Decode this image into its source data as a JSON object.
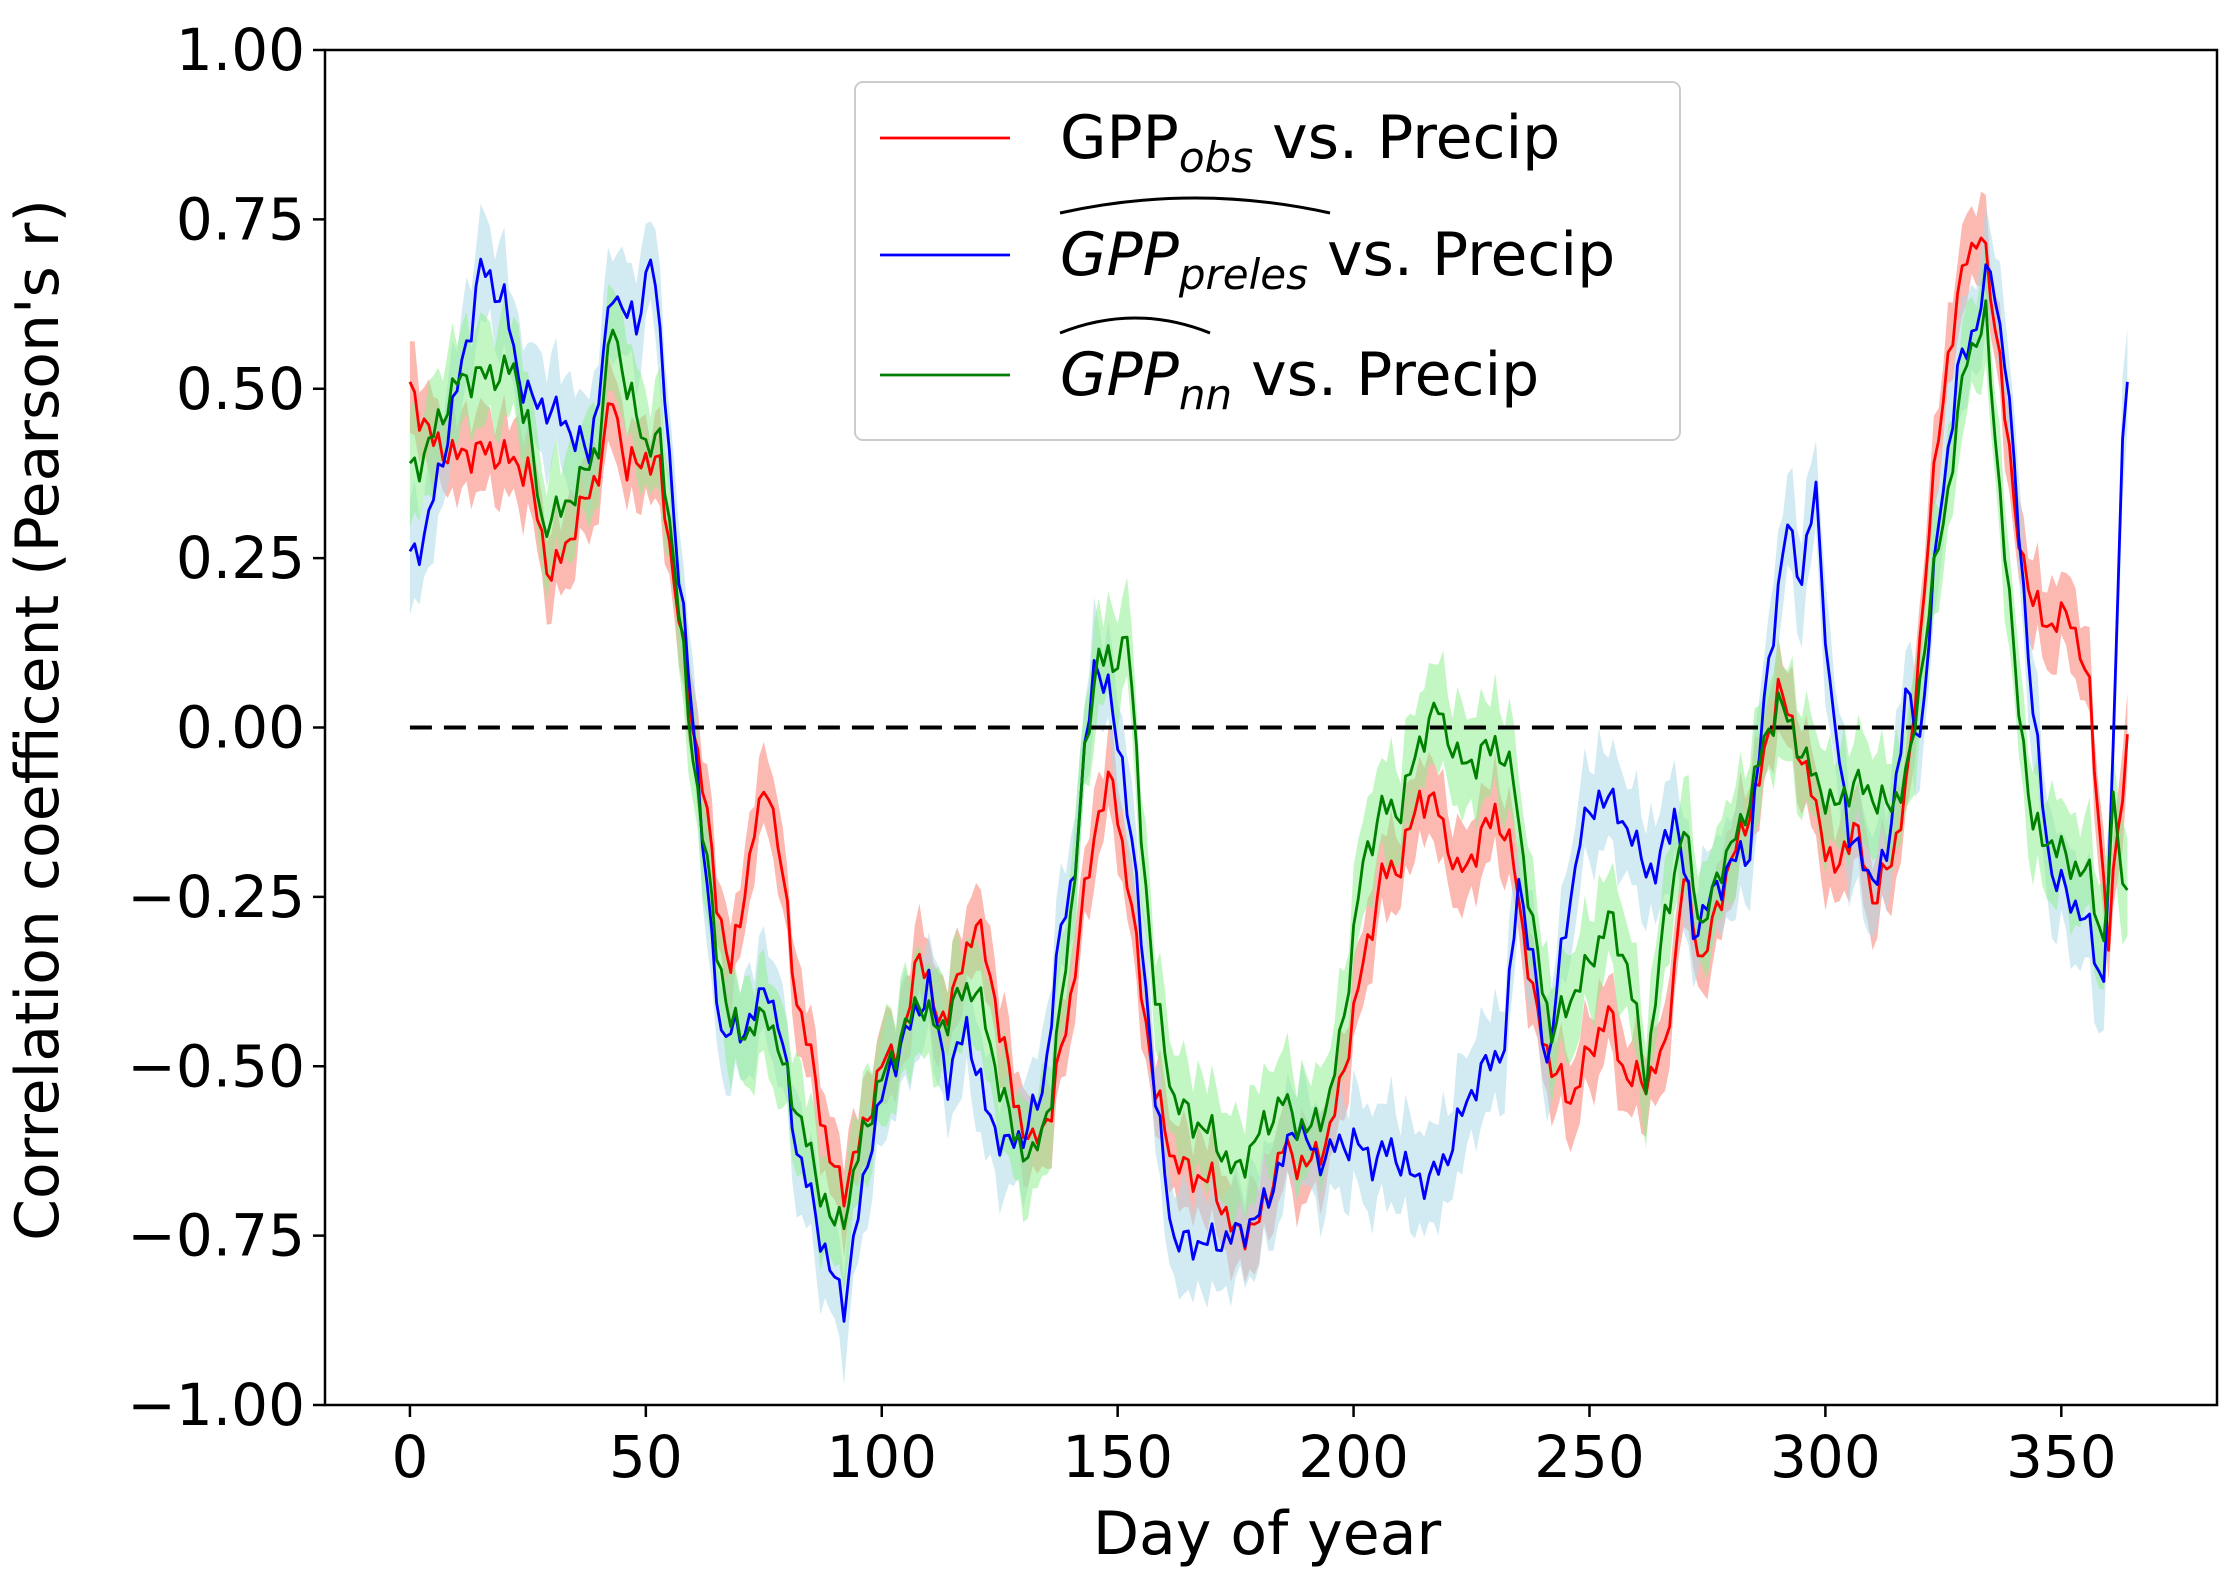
{
  "chart_data": {
    "type": "line",
    "xlabel": "Day of year",
    "ylabel": "Correlation coefficent (Pearson's r)",
    "xlim": [
      -18,
      383
    ],
    "ylim": [
      -1.0,
      1.0
    ],
    "xticks": [
      0,
      50,
      100,
      150,
      200,
      250,
      300,
      350
    ],
    "xtick_labels": [
      "0",
      "50",
      "100",
      "150",
      "200",
      "250",
      "300",
      "350"
    ],
    "yticks": [
      -1.0,
      -0.75,
      -0.5,
      -0.25,
      0.0,
      0.25,
      0.5,
      0.75,
      1.0
    ],
    "ytick_labels": [
      "−1.00",
      "−0.75",
      "−0.50",
      "−0.25",
      "0.00",
      "0.25",
      "0.50",
      "0.75",
      "1.00"
    ],
    "grid": false,
    "legend_position": "upper-center",
    "reference_line": {
      "y": 0.0,
      "x_start": 0,
      "x_end": 364,
      "style": "dashed",
      "color": "#000000"
    },
    "series": [
      {
        "key": "obs",
        "legend": {
          "base": "GPP",
          "sub": "obs",
          "suffix": " vs. Precip",
          "hat": false
        },
        "color": "#ff0000",
        "band_color": "#fa8072",
        "band_halfwidth": 0.06,
        "points": [
          [
            0,
            0.5
          ],
          [
            5,
            0.42
          ],
          [
            10,
            0.4
          ],
          [
            15,
            0.41
          ],
          [
            20,
            0.4
          ],
          [
            25,
            0.38
          ],
          [
            28,
            0.28
          ],
          [
            30,
            0.22
          ],
          [
            35,
            0.3
          ],
          [
            40,
            0.38
          ],
          [
            43,
            0.49
          ],
          [
            46,
            0.38
          ],
          [
            50,
            0.4
          ],
          [
            53,
            0.38
          ],
          [
            56,
            0.22
          ],
          [
            59,
            0.05
          ],
          [
            62,
            -0.08
          ],
          [
            65,
            -0.25
          ],
          [
            68,
            -0.36
          ],
          [
            70,
            -0.28
          ],
          [
            73,
            -0.15
          ],
          [
            76,
            -0.08
          ],
          [
            79,
            -0.22
          ],
          [
            82,
            -0.4
          ],
          [
            86,
            -0.52
          ],
          [
            89,
            -0.64
          ],
          [
            92,
            -0.68
          ],
          [
            95,
            -0.62
          ],
          [
            100,
            -0.5
          ],
          [
            105,
            -0.45
          ],
          [
            108,
            -0.32
          ],
          [
            112,
            -0.44
          ],
          [
            116,
            -0.38
          ],
          [
            120,
            -0.28
          ],
          [
            124,
            -0.4
          ],
          [
            128,
            -0.55
          ],
          [
            132,
            -0.62
          ],
          [
            136,
            -0.56
          ],
          [
            140,
            -0.4
          ],
          [
            143,
            -0.25
          ],
          [
            146,
            -0.12
          ],
          [
            149,
            -0.08
          ],
          [
            152,
            -0.22
          ],
          [
            155,
            -0.38
          ],
          [
            158,
            -0.54
          ],
          [
            162,
            -0.64
          ],
          [
            166,
            -0.66
          ],
          [
            170,
            -0.67
          ],
          [
            175,
            -0.75
          ],
          [
            180,
            -0.73
          ],
          [
            185,
            -0.62
          ],
          [
            190,
            -0.65
          ],
          [
            195,
            -0.6
          ],
          [
            198,
            -0.5
          ],
          [
            202,
            -0.35
          ],
          [
            206,
            -0.22
          ],
          [
            210,
            -0.2
          ],
          [
            214,
            -0.1
          ],
          [
            218,
            -0.12
          ],
          [
            222,
            -0.22
          ],
          [
            226,
            -0.18
          ],
          [
            230,
            -0.12
          ],
          [
            234,
            -0.2
          ],
          [
            238,
            -0.4
          ],
          [
            242,
            -0.5
          ],
          [
            246,
            -0.55
          ],
          [
            250,
            -0.48
          ],
          [
            254,
            -0.42
          ],
          [
            258,
            -0.52
          ],
          [
            262,
            -0.52
          ],
          [
            266,
            -0.48
          ],
          [
            270,
            -0.22
          ],
          [
            274,
            -0.35
          ],
          [
            278,
            -0.24
          ],
          [
            282,
            -0.16
          ],
          [
            286,
            -0.08
          ],
          [
            290,
            0.06
          ],
          [
            294,
            -0.02
          ],
          [
            298,
            -0.12
          ],
          [
            302,
            -0.22
          ],
          [
            306,
            -0.14
          ],
          [
            310,
            -0.25
          ],
          [
            314,
            -0.2
          ],
          [
            318,
            -0.05
          ],
          [
            322,
            0.3
          ],
          [
            326,
            0.55
          ],
          [
            330,
            0.7
          ],
          [
            333,
            0.73
          ],
          [
            337,
            0.55
          ],
          [
            340,
            0.32
          ],
          [
            344,
            0.18
          ],
          [
            348,
            0.15
          ],
          [
            352,
            0.17
          ],
          [
            356,
            0.05
          ],
          [
            360,
            -0.32
          ],
          [
            362,
            -0.15
          ],
          [
            364,
            -0.02
          ]
        ]
      },
      {
        "key": "preles",
        "legend": {
          "base": "GPP",
          "sub": "preles",
          "suffix": " vs. Precip",
          "hat": true
        },
        "color": "#0000ff",
        "band_color": "#add8e6",
        "band_halfwidth": 0.075,
        "points": [
          [
            0,
            0.25
          ],
          [
            3,
            0.28
          ],
          [
            6,
            0.37
          ],
          [
            10,
            0.5
          ],
          [
            13,
            0.6
          ],
          [
            15,
            0.68
          ],
          [
            18,
            0.65
          ],
          [
            20,
            0.63
          ],
          [
            23,
            0.52
          ],
          [
            26,
            0.48
          ],
          [
            30,
            0.47
          ],
          [
            34,
            0.44
          ],
          [
            38,
            0.4
          ],
          [
            41,
            0.55
          ],
          [
            43,
            0.64
          ],
          [
            46,
            0.62
          ],
          [
            48,
            0.58
          ],
          [
            51,
            0.71
          ],
          [
            54,
            0.5
          ],
          [
            57,
            0.22
          ],
          [
            60,
            0.02
          ],
          [
            63,
            -0.25
          ],
          [
            66,
            -0.45
          ],
          [
            70,
            -0.45
          ],
          [
            73,
            -0.42
          ],
          [
            76,
            -0.38
          ],
          [
            79,
            -0.47
          ],
          [
            82,
            -0.62
          ],
          [
            86,
            -0.72
          ],
          [
            89,
            -0.8
          ],
          [
            92,
            -0.85
          ],
          [
            95,
            -0.72
          ],
          [
            98,
            -0.6
          ],
          [
            102,
            -0.5
          ],
          [
            106,
            -0.44
          ],
          [
            110,
            -0.38
          ],
          [
            114,
            -0.52
          ],
          [
            118,
            -0.44
          ],
          [
            122,
            -0.56
          ],
          [
            126,
            -0.62
          ],
          [
            130,
            -0.6
          ],
          [
            134,
            -0.54
          ],
          [
            138,
            -0.3
          ],
          [
            141,
            -0.2
          ],
          [
            145,
            0.1
          ],
          [
            148,
            0.05
          ],
          [
            151,
            -0.05
          ],
          [
            155,
            -0.3
          ],
          [
            158,
            -0.55
          ],
          [
            162,
            -0.76
          ],
          [
            166,
            -0.76
          ],
          [
            170,
            -0.76
          ],
          [
            175,
            -0.75
          ],
          [
            180,
            -0.72
          ],
          [
            185,
            -0.64
          ],
          [
            188,
            -0.58
          ],
          [
            192,
            -0.64
          ],
          [
            196,
            -0.62
          ],
          [
            200,
            -0.61
          ],
          [
            204,
            -0.64
          ],
          [
            208,
            -0.62
          ],
          [
            212,
            -0.66
          ],
          [
            216,
            -0.67
          ],
          [
            220,
            -0.63
          ],
          [
            224,
            -0.55
          ],
          [
            228,
            -0.5
          ],
          [
            232,
            -0.47
          ],
          [
            235,
            -0.22
          ],
          [
            238,
            -0.35
          ],
          [
            241,
            -0.5
          ],
          [
            244,
            -0.34
          ],
          [
            248,
            -0.16
          ],
          [
            252,
            -0.1
          ],
          [
            256,
            -0.12
          ],
          [
            260,
            -0.18
          ],
          [
            264,
            -0.22
          ],
          [
            268,
            -0.12
          ],
          [
            272,
            -0.3
          ],
          [
            276,
            -0.25
          ],
          [
            280,
            -0.2
          ],
          [
            284,
            -0.18
          ],
          [
            288,
            0.1
          ],
          [
            292,
            0.3
          ],
          [
            295,
            0.22
          ],
          [
            298,
            0.35
          ],
          [
            301,
            0.05
          ],
          [
            305,
            -0.15
          ],
          [
            309,
            -0.22
          ],
          [
            313,
            -0.2
          ],
          [
            317,
            0.05
          ],
          [
            320,
            -0.02
          ],
          [
            324,
            0.3
          ],
          [
            328,
            0.52
          ],
          [
            332,
            0.6
          ],
          [
            335,
            0.68
          ],
          [
            338,
            0.55
          ],
          [
            341,
            0.3
          ],
          [
            344,
            0.02
          ],
          [
            348,
            -0.22
          ],
          [
            352,
            -0.25
          ],
          [
            356,
            -0.3
          ],
          [
            359,
            -0.38
          ],
          [
            361,
            -0.05
          ],
          [
            363,
            0.45
          ],
          [
            364,
            0.5
          ]
        ]
      },
      {
        "key": "nn",
        "legend": {
          "base": "GPP",
          "sub": "nn",
          "suffix": " vs. Precip",
          "hat": true
        },
        "color": "#008000",
        "band_color": "#90ee90",
        "band_halfwidth": 0.075,
        "points": [
          [
            0,
            0.38
          ],
          [
            3,
            0.4
          ],
          [
            6,
            0.45
          ],
          [
            10,
            0.51
          ],
          [
            14,
            0.52
          ],
          [
            18,
            0.52
          ],
          [
            22,
            0.53
          ],
          [
            25,
            0.45
          ],
          [
            28,
            0.3
          ],
          [
            32,
            0.32
          ],
          [
            36,
            0.36
          ],
          [
            40,
            0.42
          ],
          [
            43,
            0.6
          ],
          [
            46,
            0.5
          ],
          [
            50,
            0.42
          ],
          [
            53,
            0.42
          ],
          [
            56,
            0.25
          ],
          [
            59,
            0.02
          ],
          [
            62,
            -0.15
          ],
          [
            65,
            -0.32
          ],
          [
            68,
            -0.44
          ],
          [
            72,
            -0.45
          ],
          [
            76,
            -0.42
          ],
          [
            79,
            -0.5
          ],
          [
            82,
            -0.56
          ],
          [
            86,
            -0.66
          ],
          [
            90,
            -0.74
          ],
          [
            93,
            -0.7
          ],
          [
            96,
            -0.6
          ],
          [
            100,
            -0.52
          ],
          [
            104,
            -0.46
          ],
          [
            108,
            -0.4
          ],
          [
            112,
            -0.45
          ],
          [
            116,
            -0.4
          ],
          [
            120,
            -0.38
          ],
          [
            124,
            -0.5
          ],
          [
            128,
            -0.6
          ],
          [
            132,
            -0.64
          ],
          [
            136,
            -0.54
          ],
          [
            140,
            -0.28
          ],
          [
            143,
            -0.05
          ],
          [
            146,
            0.12
          ],
          [
            149,
            0.08
          ],
          [
            152,
            0.15
          ],
          [
            155,
            -0.15
          ],
          [
            158,
            -0.4
          ],
          [
            162,
            -0.55
          ],
          [
            166,
            -0.58
          ],
          [
            170,
            -0.6
          ],
          [
            175,
            -0.66
          ],
          [
            180,
            -0.6
          ],
          [
            185,
            -0.55
          ],
          [
            190,
            -0.6
          ],
          [
            195,
            -0.55
          ],
          [
            198,
            -0.42
          ],
          [
            202,
            -0.2
          ],
          [
            206,
            -0.12
          ],
          [
            210,
            -0.12
          ],
          [
            214,
            -0.02
          ],
          [
            218,
            0.03
          ],
          [
            222,
            -0.05
          ],
          [
            226,
            -0.05
          ],
          [
            230,
            -0.02
          ],
          [
            234,
            -0.08
          ],
          [
            238,
            -0.3
          ],
          [
            242,
            -0.45
          ],
          [
            246,
            -0.4
          ],
          [
            250,
            -0.35
          ],
          [
            254,
            -0.28
          ],
          [
            258,
            -0.35
          ],
          [
            262,
            -0.52
          ],
          [
            266,
            -0.28
          ],
          [
            270,
            -0.15
          ],
          [
            274,
            -0.3
          ],
          [
            278,
            -0.2
          ],
          [
            282,
            -0.15
          ],
          [
            286,
            -0.05
          ],
          [
            290,
            0.04
          ],
          [
            294,
            -0.02
          ],
          [
            298,
            -0.08
          ],
          [
            302,
            -0.12
          ],
          [
            306,
            -0.08
          ],
          [
            310,
            -0.1
          ],
          [
            314,
            -0.12
          ],
          [
            318,
            -0.05
          ],
          [
            322,
            0.18
          ],
          [
            326,
            0.35
          ],
          [
            330,
            0.55
          ],
          [
            334,
            0.6
          ],
          [
            337,
            0.35
          ],
          [
            340,
            0.1
          ],
          [
            344,
            -0.15
          ],
          [
            348,
            -0.17
          ],
          [
            352,
            -0.2
          ],
          [
            356,
            -0.22
          ],
          [
            359,
            -0.32
          ],
          [
            361,
            -0.12
          ],
          [
            364,
            -0.25
          ]
        ]
      }
    ]
  }
}
